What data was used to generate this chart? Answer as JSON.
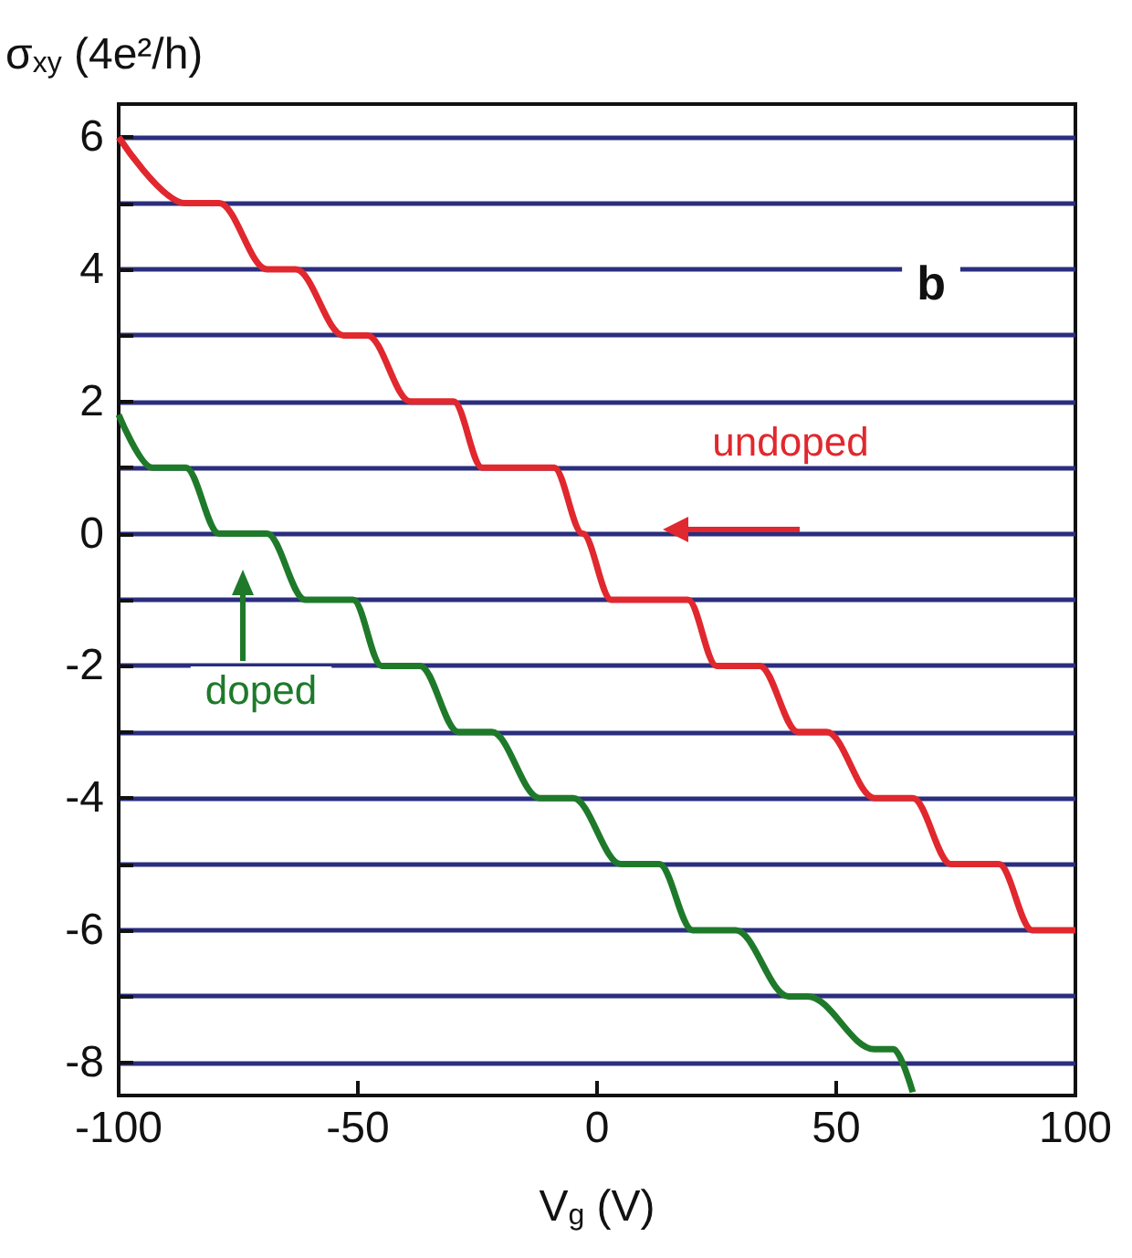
{
  "chart_data": {
    "type": "line",
    "xlabel": "V$_{g}$ (V)",
    "ylabel": "σ$_{xy}$ (4e²/h)",
    "xlim": [
      -100,
      100
    ],
    "xticks": [
      -100,
      -50,
      0,
      50,
      100
    ],
    "ylim": [
      -8.5,
      6.5
    ],
    "yticks": [
      {
        "value": -8,
        "label": "-8"
      },
      {
        "value": -7,
        "label": null
      },
      {
        "value": -6,
        "label": "-6"
      },
      {
        "value": -5,
        "label": null
      },
      {
        "value": -4,
        "label": "-4"
      },
      {
        "value": -3,
        "label": null
      },
      {
        "value": -2,
        "label": "-2"
      },
      {
        "value": -1,
        "label": null
      },
      0,
      {
        "value": 1,
        "label": null
      },
      2,
      {
        "value": 3,
        "label": null
      },
      4,
      {
        "value": 5,
        "label": null
      },
      6
    ],
    "grid": "y",
    "series": [
      {
        "color": "#e0282e",
        "x": [
          -100,
          -86,
          -79,
          -69,
          -63,
          -53,
          -48,
          -39,
          -30,
          -24,
          -9,
          -3,
          3,
          19,
          25,
          34,
          42,
          48,
          58,
          66,
          74,
          84,
          91,
          100
        ],
        "values": [
          6,
          5,
          5,
          4,
          4,
          3,
          3,
          2,
          2,
          1,
          1,
          0,
          -1,
          -1,
          -2,
          -2,
          -3,
          -3,
          -4,
          -4,
          -5,
          -5,
          -6,
          -6
        ]
      },
      {
        "color": "#1e7a2a",
        "x": [
          -100,
          -93,
          -86,
          -79,
          -69,
          -61,
          -51,
          -45,
          -37,
          -29,
          -22,
          -12,
          -5,
          5,
          13,
          20,
          29,
          40,
          44,
          58,
          62,
          66
        ],
        "values": [
          1.8,
          1,
          1,
          0,
          0,
          -1,
          -1,
          -2,
          -2,
          -3,
          -3,
          -4,
          -4,
          -5,
          -5,
          -6,
          -6,
          -7,
          -7,
          -7.8,
          -7.8,
          -8.45
        ]
      }
    ],
    "annotations": [
      "b",
      "undoped",
      "doped"
    ]
  }
}
